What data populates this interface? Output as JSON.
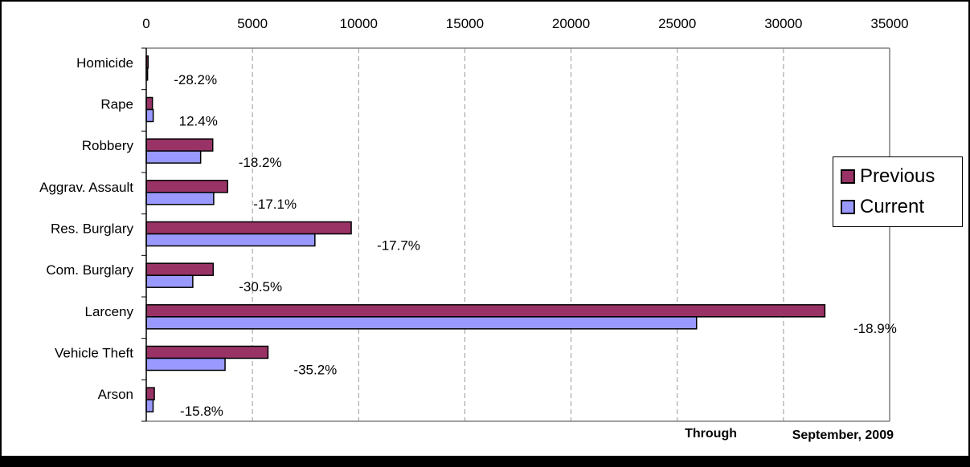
{
  "chart_data": {
    "type": "bar",
    "orientation": "horizontal",
    "categories": [
      "Homicide",
      "Rape",
      "Robbery",
      "Aggrav. Assault",
      "Res. Burglary",
      "Com. Burglary",
      "Larceny",
      "Vehicle Theft",
      "Arson"
    ],
    "series": [
      {
        "name": "Previous",
        "color": "#993366",
        "values": [
          85,
          290,
          3130,
          3830,
          9650,
          3150,
          31950,
          5730,
          380
        ]
      },
      {
        "name": "Current",
        "color": "#9999ff",
        "values": [
          61,
          326,
          2560,
          3175,
          7940,
          2190,
          25910,
          3710,
          320
        ]
      }
    ],
    "percent_labels": [
      "-28.2%",
      "12.4%",
      "-18.2%",
      "-17.1%",
      "-17.7%",
      "-30.5%",
      "-18.9%",
      "-35.2%",
      "-15.8%"
    ],
    "x_ticks": [
      "0",
      "5000",
      "10000",
      "15000",
      "20000",
      "25000",
      "30000",
      "35000"
    ],
    "xlim": [
      0,
      35000
    ],
    "x_axis_position": "top",
    "grid": "vertical dashed",
    "legend_position": "right",
    "footnote": {
      "left": "Through",
      "right": "September, 2009"
    }
  }
}
